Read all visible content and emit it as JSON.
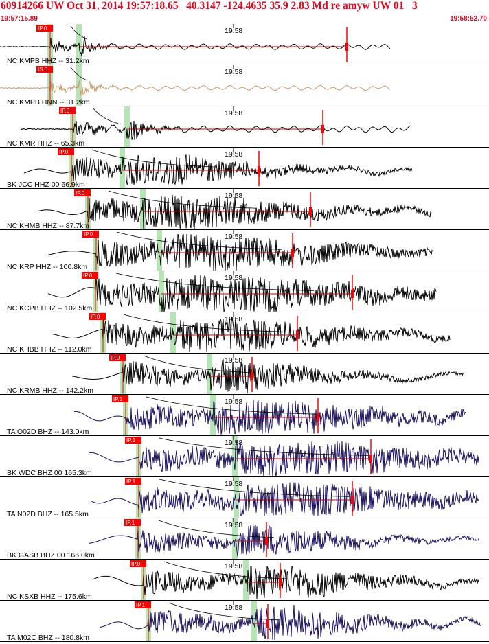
{
  "header": {
    "title": "60914266 UW Oct 31, 2014 19:57:18.65   40.3147 -124.4635 35.9 2.83 Md re amyw UW 01   3",
    "start_time": "19:57:15.89",
    "end_time": "19:58:52.70"
  },
  "minute_label": "19:58",
  "colors": {
    "title": "#e8001a",
    "pick": "#ff0000",
    "pick_window": "#a8e0a8",
    "trace_black": "#000000",
    "trace_tan": "#c89a6a",
    "trace_navy": "#1a1060",
    "coda_curve": "#000000",
    "amp_line": "#cc0000"
  },
  "traces": [
    {
      "label": "NC KMPB HHZ -- 31.2km",
      "pick_label": "IP.0",
      "color": "trace_black",
      "p": 73,
      "s": 115,
      "start": 0,
      "end": 568,
      "amp": 14,
      "dur": 30,
      "amp_pick": 505,
      "period": 3
    },
    {
      "label": "NC KMPB HNN -- 31.2km",
      "pick_label": "IS.0",
      "color": "trace_tan",
      "p": 73,
      "s": 115,
      "start": 0,
      "end": 568,
      "amp": 12,
      "dur": 30,
      "amp_pick": 0,
      "period": 3
    },
    {
      "label": "NC KMR HHZ -- 65.3km",
      "pick_label": "IP.0",
      "color": "trace_black",
      "p": 106,
      "s": 185,
      "start": 30,
      "end": 598,
      "amp": 16,
      "dur": 40,
      "amp_pick": 470,
      "period": 3
    },
    {
      "label": "BK JCC HHZ 00 66.9km",
      "pick_label": "IP.0",
      "color": "trace_black",
      "p": 104,
      "s": 178,
      "start": 35,
      "end": 600,
      "amp": 22,
      "dur": 200,
      "amp_pick": 377,
      "period": 12
    },
    {
      "label": "NC KHMB HHZ -- 87.7km",
      "pick_label": "IP.0",
      "color": "trace_black",
      "p": 128,
      "s": 208,
      "start": 55,
      "end": 628,
      "amp": 24,
      "dur": 240,
      "amp_pick": 452,
      "period": 14
    },
    {
      "label": "NC KRP HHZ -- 100.8km",
      "pick_label": "IP.0",
      "color": "trace_black",
      "p": 140,
      "s": 232,
      "start": 70,
      "end": 630,
      "amp": 26,
      "dur": 270,
      "amp_pick": 426,
      "period": 22
    },
    {
      "label": "NC KCPB HHZ -- 102.5km",
      "pick_label": "IP.0",
      "color": "trace_black",
      "p": 139,
      "s": 235,
      "start": 70,
      "end": 635,
      "amp": 26,
      "dur": 320,
      "amp_pick": 513,
      "period": 12
    },
    {
      "label": "NC KHBB HHZ -- 112.0km",
      "pick_label": "IP.0",
      "color": "trace_black",
      "p": 150,
      "s": 252,
      "start": 75,
      "end": 655,
      "amp": 24,
      "dur": 260,
      "amp_pick": 433,
      "period": 14
    },
    {
      "label": "NC KRMB HHZ -- 142.2km",
      "pick_label": "IP.0",
      "color": "trace_black",
      "p": 179,
      "s": 305,
      "start": 105,
      "end": 675,
      "amp": 24,
      "dur": 180,
      "amp_pick": 367,
      "period": 18
    },
    {
      "label": "TA O02D BHZ -- 143.0km",
      "pick_label": "IP.1",
      "color": "trace_navy",
      "p": 183,
      "s": 310,
      "start": 108,
      "end": 678,
      "amp": 24,
      "dur": 280,
      "amp_pick": 463,
      "period": 10
    },
    {
      "label": "BK WDC BHZ 00 165.3km",
      "pick_label": "IP.1",
      "color": "trace_navy",
      "p": 202,
      "s": 342,
      "start": 130,
      "end": 697,
      "amp": 24,
      "dur": 340,
      "amp_pick": 540,
      "period": 12
    },
    {
      "label": "TA N02D BHZ -- 165.5km",
      "pick_label": "IP.1",
      "color": "trace_navy",
      "p": 202,
      "s": 344,
      "start": 132,
      "end": 697,
      "amp": 24,
      "dur": 310,
      "amp_pick": 513,
      "period": 10
    },
    {
      "label": "BK GASB BHZ 00 166.0km",
      "pick_label": "IP.1",
      "color": "trace_navy",
      "p": 201,
      "s": 342,
      "start": 130,
      "end": 697,
      "amp": 22,
      "dur": 190,
      "amp_pick": 388,
      "period": 16
    },
    {
      "label": "NC KSXB HHZ -- 175.6km",
      "pick_label": "IP.0",
      "color": "trace_black",
      "p": 209,
      "s": 358,
      "start": 135,
      "end": 697,
      "amp": 24,
      "dur": 200,
      "amp_pick": 408,
      "period": 14
    },
    {
      "label": "TA M02C BHZ -- 180.8km",
      "pick_label": "IP.1",
      "color": "trace_navy",
      "p": 216,
      "s": 370,
      "start": 145,
      "end": 700,
      "amp": 26,
      "dur": 180,
      "amp_pick": 390,
      "period": 10
    }
  ]
}
